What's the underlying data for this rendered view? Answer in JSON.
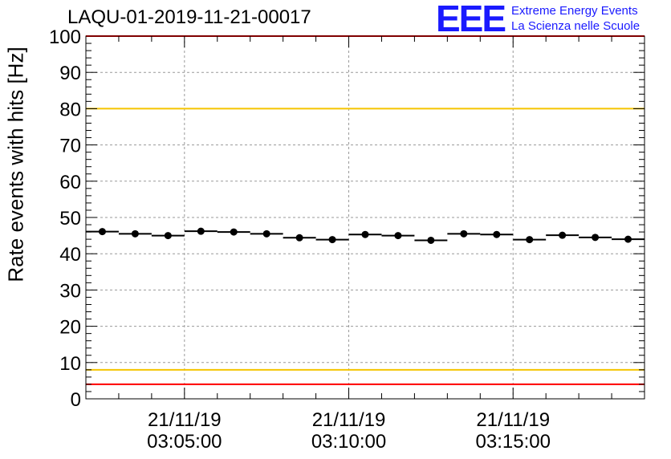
{
  "title": "LAQU-01-2019-11-21-00017",
  "logo": {
    "mark": "EEE",
    "line1": "Extreme Energy Events",
    "line2": "La Scienza nelle Scuole"
  },
  "chart_data": {
    "type": "scatter",
    "title": "LAQU-01-2019-11-21-00017",
    "xlabel": "",
    "ylabel": "Rate events with hits [Hz]",
    "ylim": [
      0,
      100
    ],
    "xlim_minutes": [
      0.0,
      17.0
    ],
    "grid": true,
    "y_ticks": [
      0,
      10,
      20,
      30,
      40,
      50,
      60,
      70,
      80,
      90,
      100
    ],
    "x_ticks": [
      {
        "t": 3.0,
        "date": "21/11/19",
        "time": "03:05:00"
      },
      {
        "t": 8.0,
        "date": "21/11/19",
        "time": "03:10:00"
      },
      {
        "t": 13.0,
        "date": "21/11/19",
        "time": "03:15:00"
      }
    ],
    "bin_width_minutes": 1.0,
    "series": [
      {
        "name": "rate",
        "x": [
          0.5,
          1.5,
          2.5,
          3.5,
          4.5,
          5.5,
          6.5,
          7.5,
          8.5,
          9.5,
          10.5,
          11.5,
          12.5,
          13.5,
          14.5,
          15.5,
          16.5
        ],
        "values": [
          46.1,
          45.5,
          45.0,
          46.2,
          46.0,
          45.5,
          44.4,
          43.9,
          45.3,
          45.0,
          43.7,
          45.5,
          45.3,
          43.9,
          45.1,
          44.5,
          44.0
        ]
      }
    ],
    "reference_lines": [
      {
        "y": 100,
        "color": "#ff0000"
      },
      {
        "y": 80,
        "color": "#f5c400"
      },
      {
        "y": 8,
        "color": "#f5c400"
      },
      {
        "y": 4,
        "color": "#ff0000"
      }
    ]
  }
}
